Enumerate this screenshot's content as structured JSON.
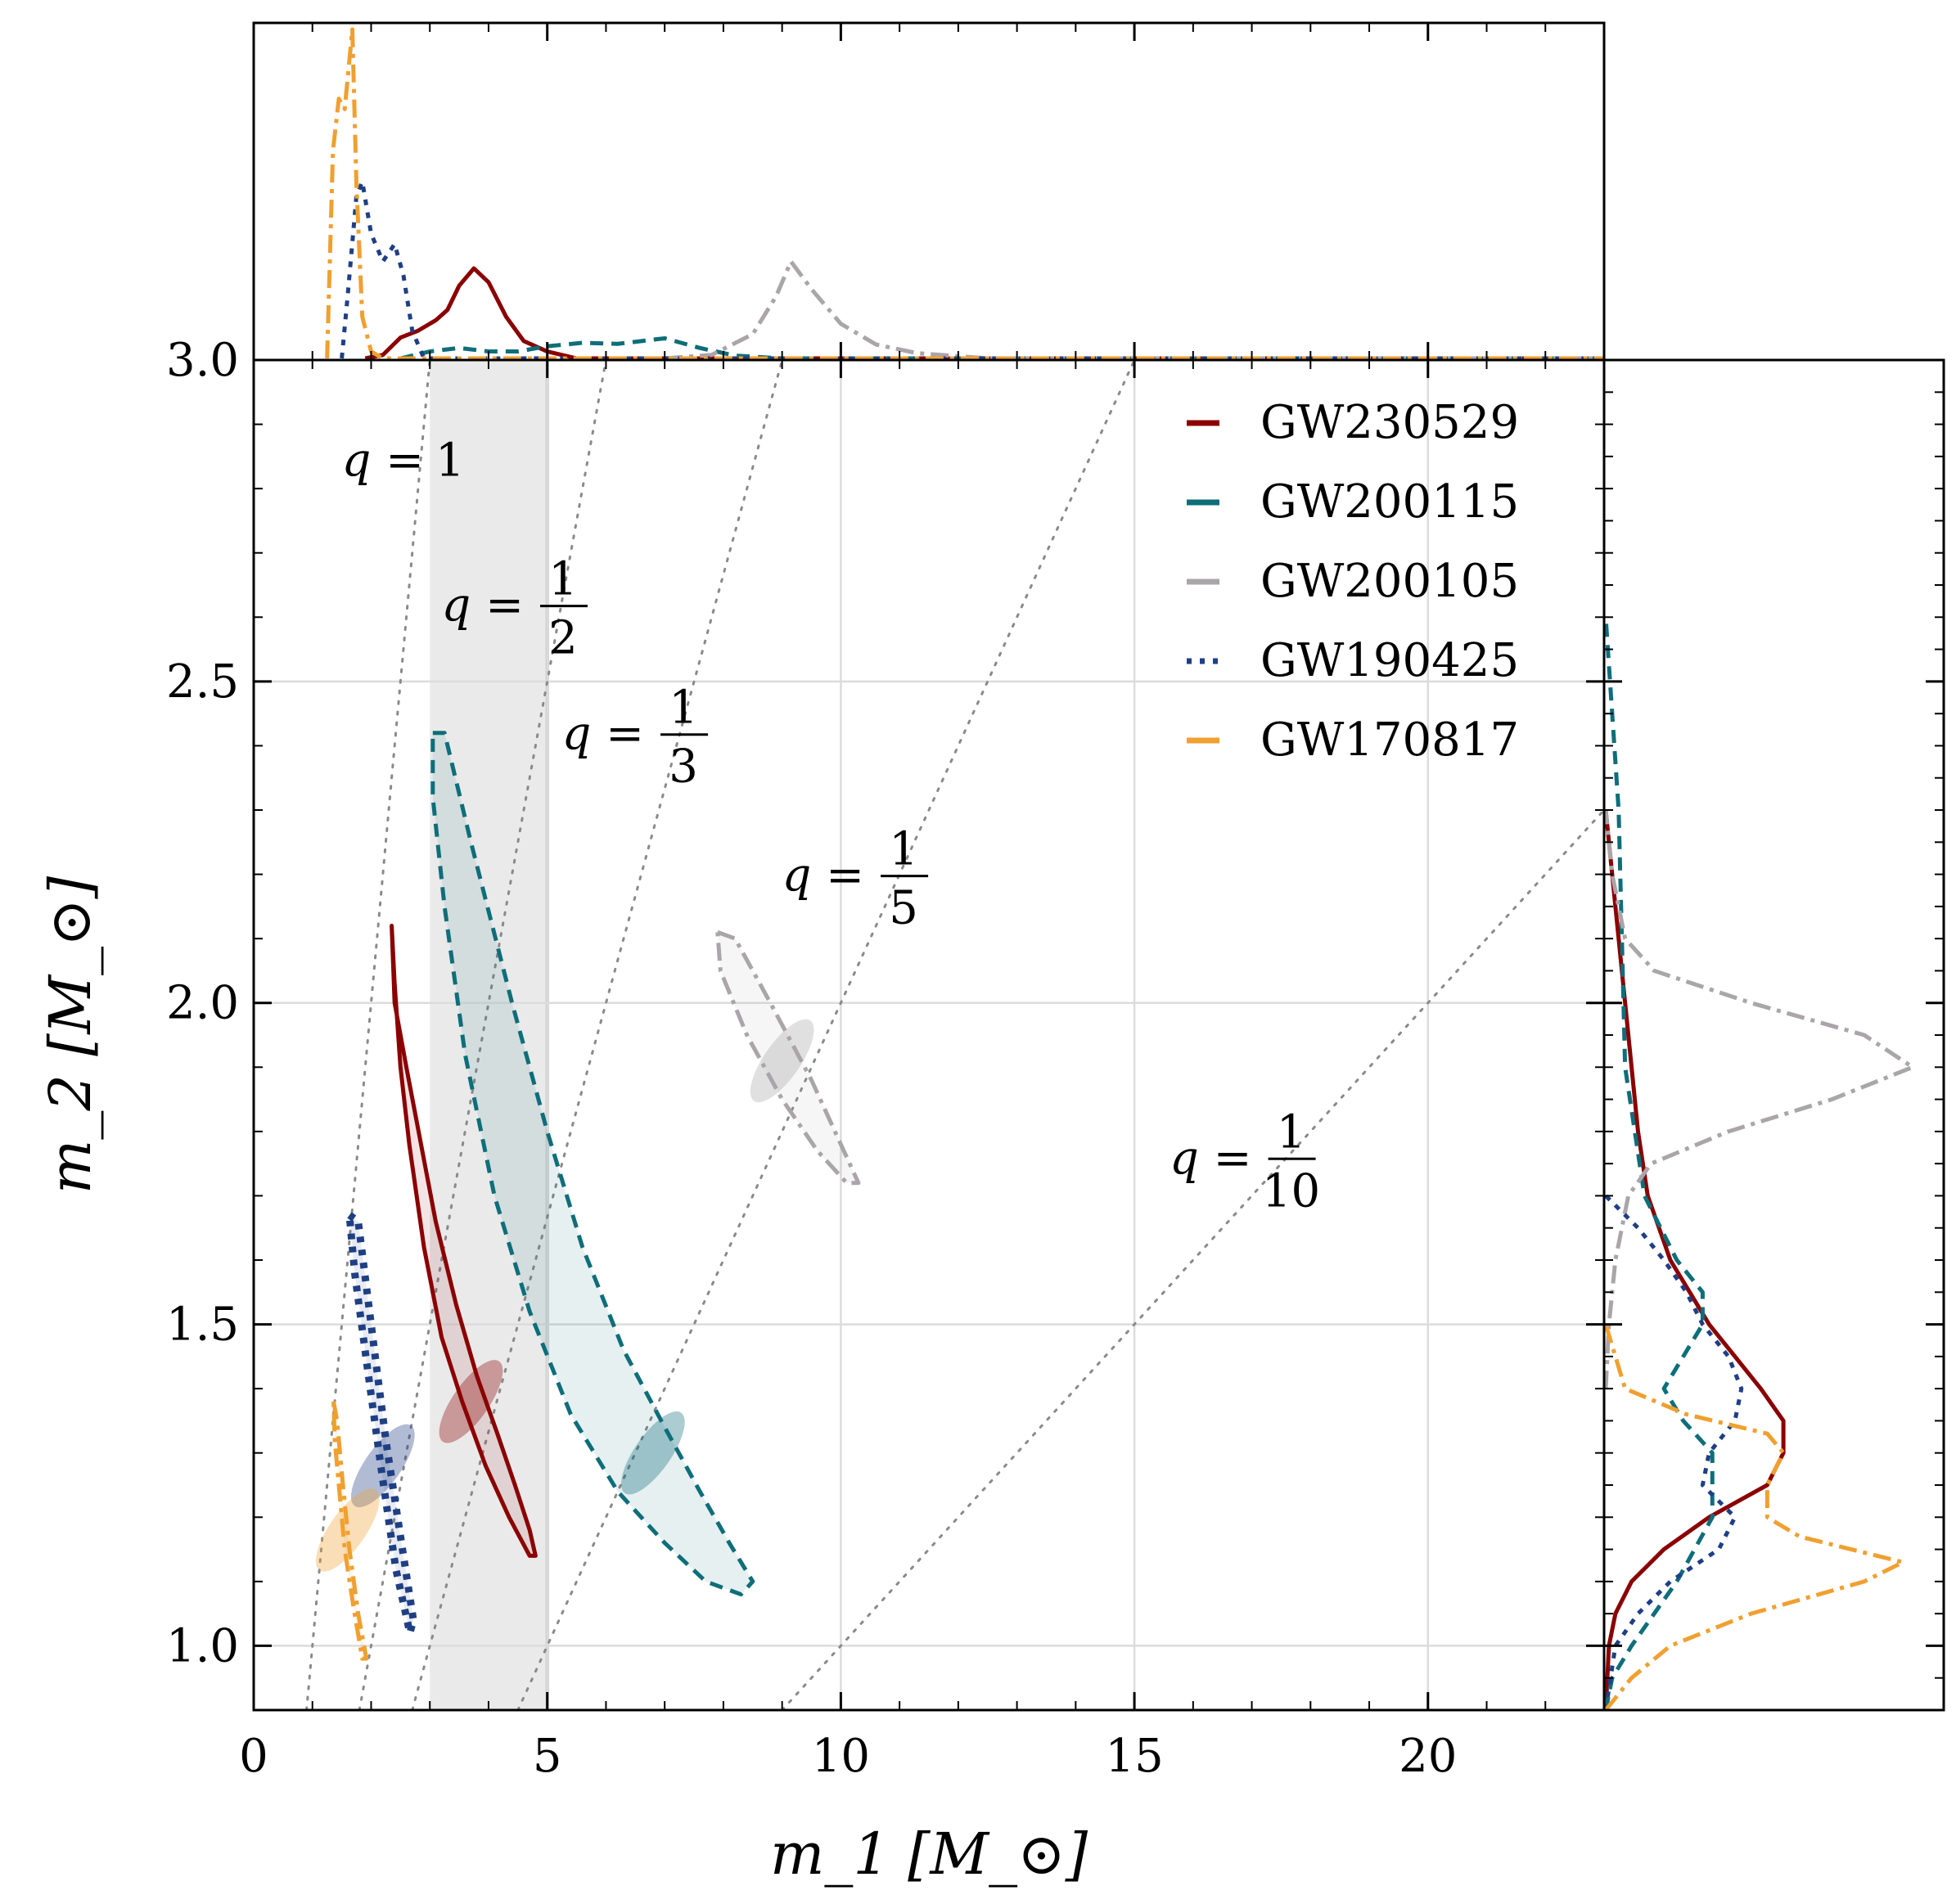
{
  "chart_data": {
    "type": "scatter",
    "subtype": "corner plot: 2D credible-region contours with marginal distributions",
    "xlabel": "m_1 [M_⊙]",
    "ylabel": "m_2 [M_⊙]",
    "xlim": [
      0,
      23
    ],
    "ylim": [
      0.9,
      3.0
    ],
    "xticks": [
      "0",
      "5",
      "10",
      "15",
      "20"
    ],
    "xtick_values": [
      0,
      5,
      10,
      15,
      20
    ],
    "yticks": [
      "1.0",
      "1.5",
      "2.0",
      "2.5",
      "3.0"
    ],
    "ytick_values": [
      1.0,
      1.5,
      2.0,
      2.5,
      3.0
    ],
    "grid": true,
    "legend_position": "top-right",
    "shaded_band": {
      "x_from": 3,
      "x_to": 5,
      "color": "#d9d9d9"
    },
    "mass_ratio_lines": [
      {
        "label_lhs": "q =",
        "num": "1",
        "den": "",
        "q": 1.0,
        "label_at": [
          2.9,
          2.82
        ]
      },
      {
        "label_lhs": "q =",
        "num": "1",
        "den": "2",
        "q": 0.5,
        "label_at": [
          4.6,
          2.62
        ]
      },
      {
        "label_lhs": "q =",
        "num": "1",
        "den": "3",
        "q": 0.3333,
        "label_at": [
          6.65,
          2.42
        ]
      },
      {
        "label_lhs": "q =",
        "num": "1",
        "den": "5",
        "q": 0.2,
        "label_at": [
          10.4,
          2.2
        ]
      },
      {
        "label_lhs": "q =",
        "num": "1",
        "den": "10",
        "q": 0.1,
        "label_at": [
          17.0,
          1.76
        ]
      }
    ],
    "series": [
      {
        "name": "GW230529",
        "color": "#8b0000",
        "linestyle": "solid",
        "contour": [
          [
            2.35,
            2.12
          ],
          [
            2.4,
            2.0
          ],
          [
            2.6,
            1.9
          ],
          [
            2.85,
            1.78
          ],
          [
            3.1,
            1.66
          ],
          [
            3.45,
            1.53
          ],
          [
            3.8,
            1.42
          ],
          [
            4.15,
            1.33
          ],
          [
            4.45,
            1.25
          ],
          [
            4.7,
            1.18
          ],
          [
            4.8,
            1.14
          ],
          [
            4.7,
            1.14
          ],
          [
            4.35,
            1.2
          ],
          [
            3.95,
            1.28
          ],
          [
            3.55,
            1.38
          ],
          [
            3.2,
            1.48
          ],
          [
            2.9,
            1.62
          ],
          [
            2.65,
            1.78
          ],
          [
            2.5,
            1.9
          ],
          [
            2.4,
            2.03
          ],
          [
            2.35,
            2.12
          ]
        ],
        "density_center": [
          3.7,
          1.38
        ],
        "marginal_m1": [
          [
            1.9,
            0.0
          ],
          [
            2.2,
            0.01
          ],
          [
            2.5,
            0.06
          ],
          [
            2.8,
            0.08
          ],
          [
            3.1,
            0.11
          ],
          [
            3.3,
            0.14
          ],
          [
            3.5,
            0.21
          ],
          [
            3.75,
            0.26
          ],
          [
            4.0,
            0.22
          ],
          [
            4.3,
            0.12
          ],
          [
            4.6,
            0.05
          ],
          [
            5.0,
            0.02
          ],
          [
            5.5,
            0.0
          ]
        ],
        "marginal_m2": [
          [
            0.9,
            0.0
          ],
          [
            1.0,
            0.01
          ],
          [
            1.05,
            0.03
          ],
          [
            1.1,
            0.08
          ],
          [
            1.15,
            0.18
          ],
          [
            1.2,
            0.32
          ],
          [
            1.25,
            0.5
          ],
          [
            1.3,
            0.55
          ],
          [
            1.35,
            0.55
          ],
          [
            1.4,
            0.48
          ],
          [
            1.5,
            0.32
          ],
          [
            1.6,
            0.2
          ],
          [
            1.7,
            0.13
          ],
          [
            1.8,
            0.1
          ],
          [
            1.9,
            0.08
          ],
          [
            2.0,
            0.06
          ],
          [
            2.1,
            0.04
          ],
          [
            2.2,
            0.02
          ],
          [
            2.3,
            0.0
          ]
        ]
      },
      {
        "name": "GW200115",
        "color": "#0e6e7a",
        "linestyle": "dashed",
        "contour": [
          [
            3.05,
            2.42
          ],
          [
            3.25,
            2.42
          ],
          [
            3.7,
            2.25
          ],
          [
            4.4,
            2.0
          ],
          [
            5.0,
            1.8
          ],
          [
            5.6,
            1.62
          ],
          [
            6.3,
            1.46
          ],
          [
            7.0,
            1.34
          ],
          [
            7.6,
            1.24
          ],
          [
            8.1,
            1.16
          ],
          [
            8.5,
            1.1
          ],
          [
            8.3,
            1.08
          ],
          [
            7.7,
            1.1
          ],
          [
            7.0,
            1.16
          ],
          [
            6.2,
            1.24
          ],
          [
            5.4,
            1.36
          ],
          [
            4.7,
            1.52
          ],
          [
            4.1,
            1.7
          ],
          [
            3.6,
            1.92
          ],
          [
            3.25,
            2.15
          ],
          [
            3.05,
            2.32
          ],
          [
            3.05,
            2.42
          ]
        ],
        "density_center": [
          6.8,
          1.3
        ],
        "marginal_m1": [
          [
            2.5,
            0.0
          ],
          [
            3.0,
            0.02
          ],
          [
            3.5,
            0.03
          ],
          [
            4.0,
            0.02
          ],
          [
            4.5,
            0.02
          ],
          [
            5.0,
            0.035
          ],
          [
            5.6,
            0.045
          ],
          [
            6.2,
            0.042
          ],
          [
            7.0,
            0.058
          ],
          [
            7.6,
            0.03
          ],
          [
            8.2,
            0.008
          ],
          [
            9.0,
            0.0
          ]
        ],
        "marginal_m2": [
          [
            0.9,
            0.0
          ],
          [
            0.95,
            0.02
          ],
          [
            1.0,
            0.08
          ],
          [
            1.1,
            0.22
          ],
          [
            1.2,
            0.33
          ],
          [
            1.3,
            0.33
          ],
          [
            1.35,
            0.24
          ],
          [
            1.4,
            0.18
          ],
          [
            1.45,
            0.24
          ],
          [
            1.5,
            0.3
          ],
          [
            1.55,
            0.3
          ],
          [
            1.6,
            0.22
          ],
          [
            1.7,
            0.12
          ],
          [
            1.9,
            0.06
          ],
          [
            2.1,
            0.05
          ],
          [
            2.3,
            0.04
          ],
          [
            2.45,
            0.02
          ],
          [
            2.6,
            0.0
          ]
        ]
      },
      {
        "name": "GW200105",
        "color": "#aaa5a9",
        "linestyle": "dashdot",
        "contour": [
          [
            7.9,
            2.11
          ],
          [
            8.2,
            2.1
          ],
          [
            8.8,
            2.0
          ],
          [
            9.5,
            1.88
          ],
          [
            10.0,
            1.78
          ],
          [
            10.3,
            1.72
          ],
          [
            10.1,
            1.72
          ],
          [
            9.6,
            1.77
          ],
          [
            9.0,
            1.85
          ],
          [
            8.4,
            1.95
          ],
          [
            7.95,
            2.05
          ],
          [
            7.9,
            2.11
          ]
        ],
        "density_center": [
          9.0,
          1.91
        ],
        "marginal_m1": [
          [
            7.0,
            0.0
          ],
          [
            7.8,
            0.01
          ],
          [
            8.5,
            0.07
          ],
          [
            8.9,
            0.18
          ],
          [
            9.15,
            0.28
          ],
          [
            9.5,
            0.2
          ],
          [
            10.0,
            0.1
          ],
          [
            10.6,
            0.04
          ],
          [
            11.3,
            0.015
          ],
          [
            12.5,
            0.0
          ]
        ],
        "marginal_m2": [
          [
            1.4,
            0.0
          ],
          [
            1.5,
            0.01
          ],
          [
            1.6,
            0.03
          ],
          [
            1.7,
            0.07
          ],
          [
            1.75,
            0.14
          ],
          [
            1.8,
            0.38
          ],
          [
            1.85,
            0.7
          ],
          [
            1.9,
            0.95
          ],
          [
            1.95,
            0.8
          ],
          [
            2.0,
            0.45
          ],
          [
            2.05,
            0.15
          ],
          [
            2.1,
            0.06
          ],
          [
            2.2,
            0.02
          ],
          [
            2.3,
            0.0
          ]
        ]
      },
      {
        "name": "GW190425",
        "color": "#1f3f85",
        "linestyle": "dotted",
        "contour": [
          [
            1.63,
            1.67
          ],
          [
            1.78,
            1.66
          ],
          [
            2.0,
            1.5
          ],
          [
            2.25,
            1.32
          ],
          [
            2.5,
            1.17
          ],
          [
            2.72,
            1.04
          ],
          [
            2.66,
            1.02
          ],
          [
            2.42,
            1.12
          ],
          [
            2.18,
            1.27
          ],
          [
            1.94,
            1.43
          ],
          [
            1.72,
            1.58
          ],
          [
            1.63,
            1.67
          ]
        ],
        "density_center": [
          2.2,
          1.28
        ],
        "marginal_m1": [
          [
            1.5,
            0.0
          ],
          [
            1.6,
            0.18
          ],
          [
            1.75,
            0.47
          ],
          [
            1.85,
            0.51
          ],
          [
            2.0,
            0.36
          ],
          [
            2.2,
            0.28
          ],
          [
            2.4,
            0.33
          ],
          [
            2.55,
            0.24
          ],
          [
            2.7,
            0.08
          ],
          [
            2.9,
            0.0
          ]
        ],
        "marginal_m2": [
          [
            0.9,
            0.0
          ],
          [
            1.0,
            0.03
          ],
          [
            1.05,
            0.1
          ],
          [
            1.1,
            0.2
          ],
          [
            1.15,
            0.35
          ],
          [
            1.2,
            0.4
          ],
          [
            1.25,
            0.3
          ],
          [
            1.3,
            0.32
          ],
          [
            1.35,
            0.4
          ],
          [
            1.4,
            0.42
          ],
          [
            1.45,
            0.38
          ],
          [
            1.5,
            0.3
          ],
          [
            1.55,
            0.25
          ],
          [
            1.6,
            0.18
          ],
          [
            1.65,
            0.1
          ],
          [
            1.7,
            0.0
          ]
        ]
      },
      {
        "name": "GW170817",
        "color": "#f0a030",
        "linestyle": "dashdot",
        "contour": [
          [
            1.36,
            1.38
          ],
          [
            1.42,
            1.35
          ],
          [
            1.52,
            1.25
          ],
          [
            1.63,
            1.15
          ],
          [
            1.78,
            1.05
          ],
          [
            1.92,
            0.98
          ],
          [
            1.85,
            0.98
          ],
          [
            1.7,
            1.06
          ],
          [
            1.55,
            1.15
          ],
          [
            1.45,
            1.25
          ],
          [
            1.38,
            1.32
          ],
          [
            1.36,
            1.38
          ]
        ],
        "density_center": [
          1.6,
          1.18
        ],
        "marginal_m1": [
          [
            1.25,
            0.0
          ],
          [
            1.35,
            0.6
          ],
          [
            1.45,
            0.75
          ],
          [
            1.55,
            0.72
          ],
          [
            1.68,
            0.95
          ],
          [
            1.75,
            0.5
          ],
          [
            1.85,
            0.12
          ],
          [
            2.0,
            0.02
          ],
          [
            2.2,
            0.0
          ]
        ],
        "marginal_m2": [
          [
            0.9,
            0.0
          ],
          [
            0.95,
            0.08
          ],
          [
            1.0,
            0.2
          ],
          [
            1.05,
            0.45
          ],
          [
            1.1,
            0.8
          ],
          [
            1.13,
            0.92
          ],
          [
            1.17,
            0.6
          ],
          [
            1.2,
            0.5
          ],
          [
            1.25,
            0.5
          ],
          [
            1.3,
            0.55
          ],
          [
            1.33,
            0.5
          ],
          [
            1.36,
            0.25
          ],
          [
            1.4,
            0.06
          ],
          [
            1.5,
            0.0
          ]
        ]
      }
    ]
  }
}
